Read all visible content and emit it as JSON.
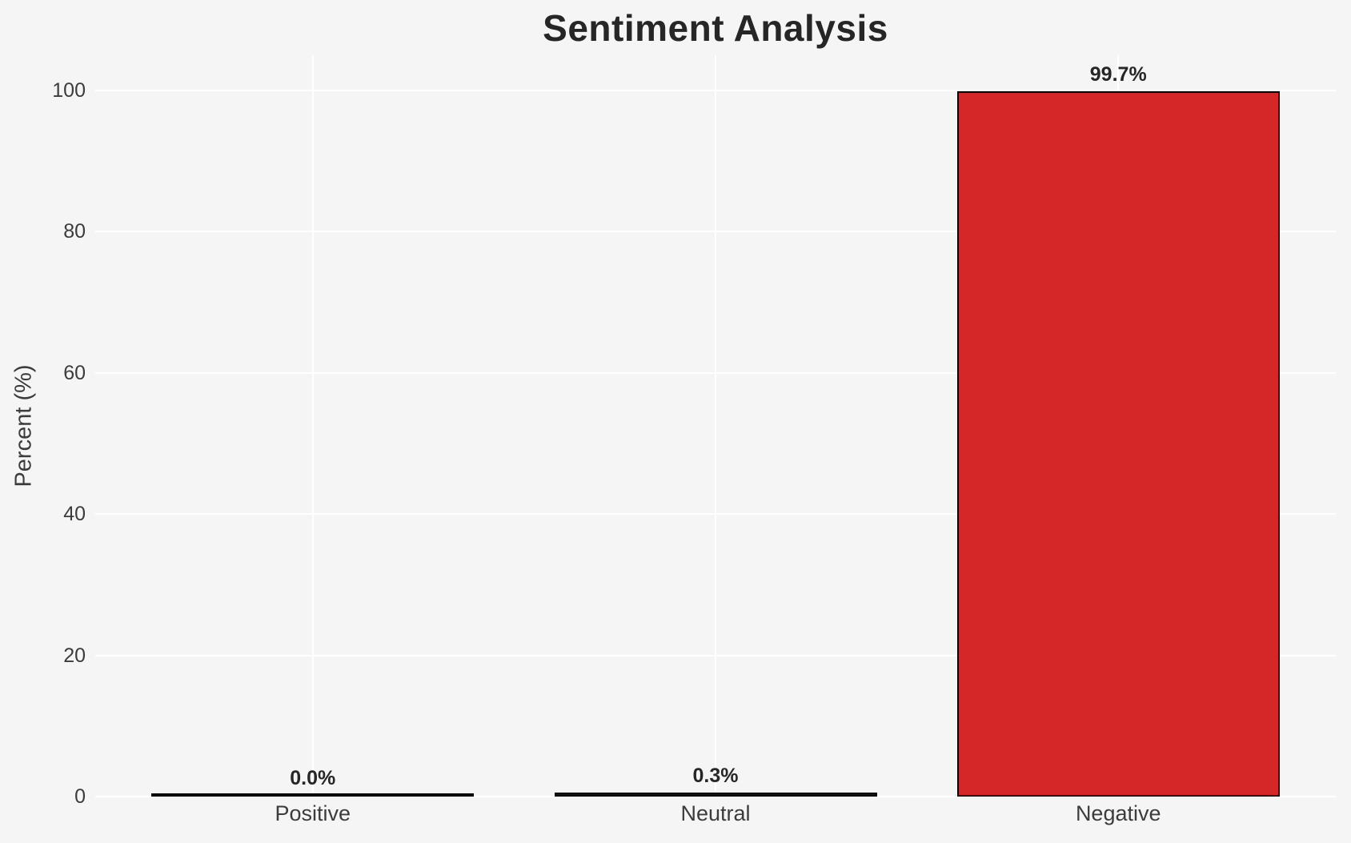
{
  "chart_data": {
    "type": "bar",
    "title": "Sentiment Analysis",
    "xlabel": "",
    "ylabel": "Percent (%)",
    "categories": [
      "Positive",
      "Neutral",
      "Negative"
    ],
    "values": [
      0.0,
      0.3,
      99.7
    ],
    "value_labels": [
      "0.0%",
      "0.3%",
      "99.7%"
    ],
    "yticks": [
      0,
      20,
      40,
      60,
      80,
      100
    ],
    "ylim": [
      0,
      105
    ],
    "grid": true,
    "legend_position": "none",
    "background_color": "#f5f5f6",
    "grid_color": "#ffffff",
    "bar_fill_colors": [
      "#f5f5f6",
      "#1a1a1a",
      "#d62728"
    ],
    "bar_edge_color": "#000000",
    "title_color": "#262626",
    "text_color": "#3c3c3c"
  }
}
